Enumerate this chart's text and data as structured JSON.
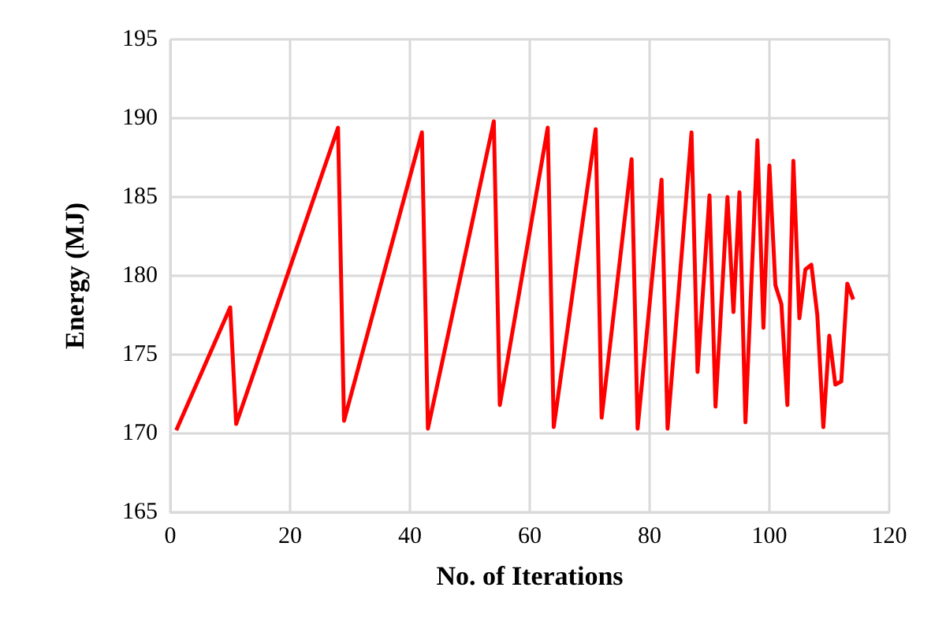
{
  "chart_data": {
    "type": "line",
    "xlabel": "No. of Iterations",
    "ylabel": "Energy (MJ)",
    "x": [
      1,
      10,
      11,
      28,
      29,
      42,
      43,
      54,
      55,
      63,
      64,
      71,
      72,
      77,
      78,
      82,
      83,
      87,
      88,
      90,
      91,
      93,
      94,
      95,
      96,
      98,
      99,
      100,
      101,
      102,
      103,
      104,
      105,
      106,
      107,
      108,
      109,
      110,
      111,
      112,
      113,
      114
    ],
    "series": [
      {
        "color": "#ff0000",
        "values": [
          170.2,
          178,
          170.6,
          189.4,
          170.8,
          189.1,
          170.3,
          189.8,
          171.8,
          189.4,
          170.4,
          189.3,
          171.0,
          187.4,
          170.3,
          186.1,
          170.3,
          189.1,
          173.9,
          185.1,
          171.7,
          185.0,
          177.7,
          185.3,
          170.7,
          188.6,
          176.7,
          187.0,
          179.4,
          178.2,
          171.8,
          187.3,
          177.3,
          180.4,
          180.7,
          177.5,
          170.4,
          176.2,
          173.1,
          173.3,
          179.5,
          178.5
        ]
      }
    ],
    "xlim": [
      0,
      120
    ],
    "xticks": [
      0,
      20,
      40,
      60,
      80,
      100,
      120
    ],
    "ylim": [
      165,
      195
    ],
    "yticks": [
      165,
      170,
      175,
      180,
      185,
      190,
      195
    ],
    "grid": true,
    "marker": "none",
    "line_style": "solid"
  }
}
